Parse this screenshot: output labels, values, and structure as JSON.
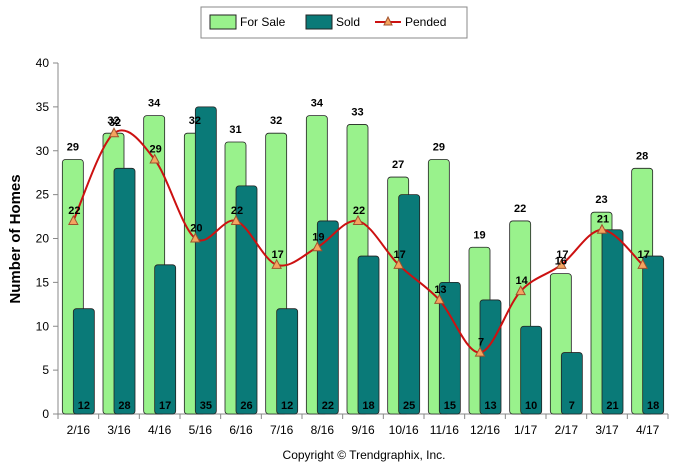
{
  "chart_data": {
    "type": "bar",
    "categories": [
      "2/16",
      "3/16",
      "4/16",
      "5/16",
      "6/16",
      "7/16",
      "8/16",
      "9/16",
      "10/16",
      "11/16",
      "12/16",
      "1/17",
      "2/17",
      "3/17",
      "4/17"
    ],
    "series": [
      {
        "name": "For Sale",
        "kind": "bar",
        "color": "#99f28c",
        "values": [
          29,
          32,
          34,
          32,
          31,
          32,
          34,
          33,
          27,
          29,
          19,
          22,
          16,
          23,
          28
        ]
      },
      {
        "name": "Sold",
        "kind": "bar",
        "color": "#0a7a78",
        "values": [
          12,
          28,
          17,
          35,
          26,
          12,
          22,
          18,
          25,
          15,
          13,
          10,
          7,
          21,
          18
        ]
      },
      {
        "name": "Pended",
        "kind": "line",
        "color": "#cc1111",
        "values": [
          22,
          32,
          29,
          20,
          22,
          17,
          19,
          22,
          17,
          13,
          7,
          14,
          17,
          21,
          17
        ]
      }
    ],
    "ylabel": "Number of Homes",
    "ylim": [
      0,
      40
    ],
    "yticks": [
      0,
      5,
      10,
      15,
      20,
      25,
      30,
      35,
      40
    ],
    "legend_position": "top-center",
    "grid": false
  },
  "credit": "Copyright © Trendgraphix, Inc."
}
